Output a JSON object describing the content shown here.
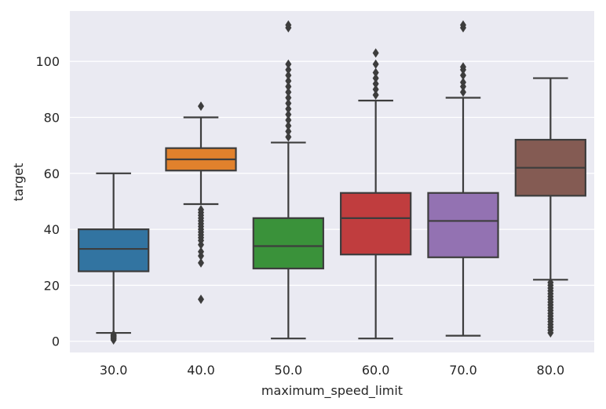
{
  "chart_data": {
    "type": "box",
    "xlabel": "maximum_speed_limit",
    "ylabel": "target",
    "ylim": [
      -4,
      118
    ],
    "y_ticks": [
      0,
      20,
      40,
      60,
      80,
      100
    ],
    "grid": true,
    "categories": [
      "30.0",
      "40.0",
      "50.0",
      "60.0",
      "70.0",
      "80.0"
    ],
    "boxes": [
      {
        "category": "30.0",
        "color": "#3274a1",
        "whisker_low": 3,
        "q1": 25,
        "median": 33,
        "q3": 40,
        "whisker_high": 60,
        "outliers": [
          0.5,
          1,
          1.3,
          1.7,
          2,
          2.4
        ]
      },
      {
        "category": "40.0",
        "color": "#e1812c",
        "whisker_low": 49,
        "q1": 61,
        "median": 65,
        "q3": 69,
        "whisker_high": 80,
        "outliers": [
          15,
          28,
          30.5,
          32,
          34.5,
          36,
          37,
          38,
          39,
          40,
          41,
          42,
          43,
          44,
          45,
          46,
          47,
          84
        ]
      },
      {
        "category": "50.0",
        "color": "#3a923a",
        "whisker_low": 1,
        "q1": 26,
        "median": 34,
        "q3": 44,
        "whisker_high": 71,
        "outliers": [
          73,
          75,
          77,
          79,
          81,
          83,
          85,
          87,
          89,
          91,
          93,
          95,
          97,
          99,
          112,
          113
        ]
      },
      {
        "category": "60.0",
        "color": "#c03d3e",
        "whisker_low": 1,
        "q1": 31,
        "median": 44,
        "q3": 53,
        "whisker_high": 86,
        "outliers": [
          88,
          90,
          92,
          94,
          96,
          99,
          103
        ]
      },
      {
        "category": "70.0",
        "color": "#9372b2",
        "whisker_low": 2,
        "q1": 30,
        "median": 43,
        "q3": 53,
        "whisker_high": 87,
        "outliers": [
          89,
          91,
          92.5,
          95,
          97,
          98,
          112,
          113
        ]
      },
      {
        "category": "80.0",
        "color": "#845b53",
        "whisker_low": 22,
        "q1": 52,
        "median": 62,
        "q3": 72,
        "whisker_high": 94,
        "outliers": [
          3,
          4,
          5,
          6,
          7,
          8,
          9,
          10,
          11,
          12,
          13,
          14,
          15,
          16,
          17,
          18,
          19,
          20,
          21
        ]
      }
    ]
  }
}
